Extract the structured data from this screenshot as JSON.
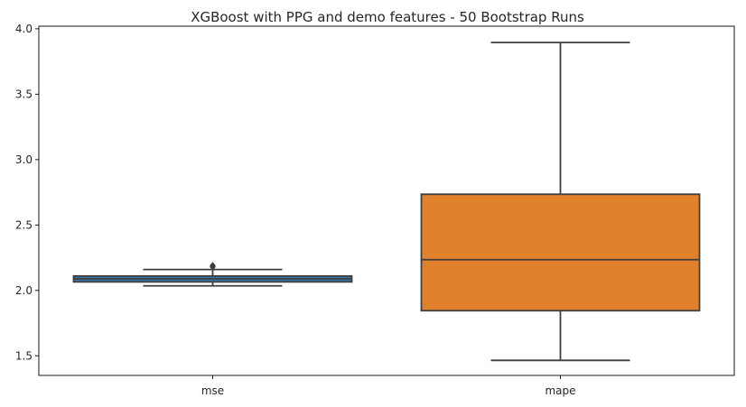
{
  "chart_data": {
    "type": "box",
    "title": "XGBoost with PPG and demo features - 50 Bootstrap Runs",
    "xlabel": "",
    "ylabel": "",
    "categories": [
      "mse",
      "mape"
    ],
    "ylim": [
      1.35,
      4.02
    ],
    "yticks": [
      1.5,
      2.0,
      2.5,
      3.0,
      3.5,
      4.0
    ],
    "ytick_labels": [
      "1.5",
      "2.0",
      "2.5",
      "3.0",
      "3.5",
      "4.0"
    ],
    "grid": false,
    "boxes": [
      {
        "category": "mse",
        "whisker_low": 2.035,
        "q1": 2.065,
        "median": 2.088,
        "q3": 2.11,
        "whisker_high": 2.16,
        "outliers": [
          2.18,
          2.19
        ],
        "color": "#3a74a8"
      },
      {
        "category": "mape",
        "whisker_low": 1.465,
        "q1": 1.845,
        "median": 2.235,
        "q3": 2.735,
        "whisker_high": 3.895,
        "outliers": [],
        "color": "#e1812c"
      }
    ],
    "line_color": "#3f3f3f"
  }
}
